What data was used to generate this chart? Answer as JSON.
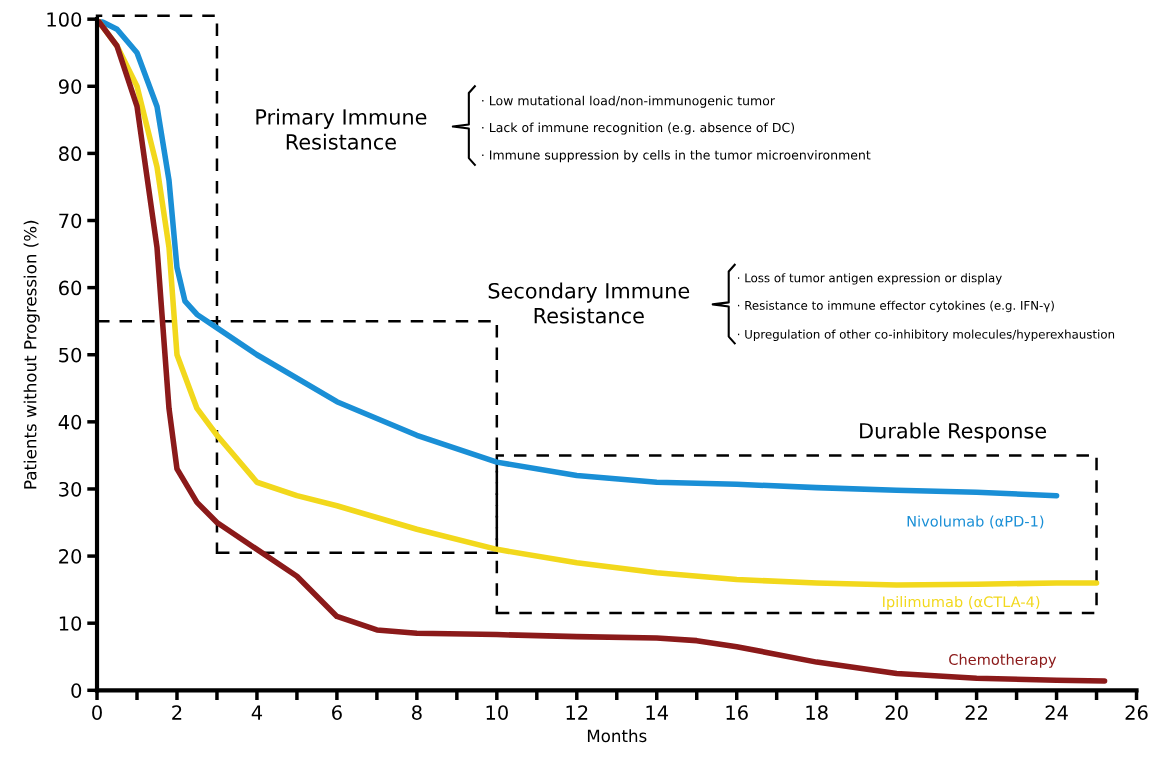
{
  "chart_data": {
    "type": "line",
    "xlabel": "Months",
    "ylabel": "Patients without Progression (%)",
    "xlim": [
      0,
      26
    ],
    "ylim": [
      0,
      100
    ],
    "xticks": [
      0,
      {
        "value": 1,
        "label": null
      },
      2,
      {
        "value": 3,
        "label": null
      },
      4,
      {
        "value": 5,
        "label": null
      },
      6,
      {
        "value": 7,
        "label": null
      },
      8,
      {
        "value": 9,
        "label": null
      },
      10,
      {
        "value": 11,
        "label": null
      },
      12,
      {
        "value": 13,
        "label": null
      },
      14,
      {
        "value": 15,
        "label": null
      },
      16,
      {
        "value": 17,
        "label": null
      },
      18,
      {
        "value": 19,
        "label": null
      },
      20,
      {
        "value": 21,
        "label": null
      },
      22,
      {
        "value": 23,
        "label": null
      },
      24,
      {
        "value": 25,
        "label": null
      },
      26
    ],
    "yticks": [
      0,
      10,
      20,
      30,
      40,
      50,
      60,
      70,
      80,
      90,
      100
    ],
    "grid": false,
    "legend": false,
    "marker": "none",
    "line_style": "solid",
    "series": [
      {
        "name": "Nivolumab (αPD-1)",
        "color": "#1a8fd6",
        "x": [
          0,
          0.5,
          1,
          1.5,
          1.8,
          2,
          2.2,
          2.5,
          3,
          4,
          6,
          8,
          10,
          12,
          14,
          16,
          18,
          20,
          22,
          24
        ],
        "values": [
          100,
          98.5,
          95,
          87,
          76,
          63,
          58,
          56,
          54,
          50,
          43,
          38,
          34,
          32,
          31,
          30.7,
          30.2,
          29.8,
          29.5,
          29
        ]
      },
      {
        "name": "Ipilimumab (αCTLA-4)",
        "color": "#f2d81c",
        "x": [
          0,
          0.5,
          1,
          1.5,
          1.8,
          2,
          2.5,
          3,
          4,
          5,
          6,
          8,
          10,
          12,
          14,
          16,
          18,
          20,
          22,
          24,
          25
        ],
        "values": [
          100,
          96,
          90,
          78,
          66,
          50,
          42,
          38,
          31,
          29,
          27.5,
          24,
          21,
          19,
          17.5,
          16.5,
          16,
          15.7,
          15.8,
          16,
          16
        ]
      },
      {
        "name": "Chemotherapy",
        "color": "#8b1a1a",
        "x": [
          0,
          0.5,
          1,
          1.5,
          1.8,
          2,
          2.5,
          3,
          4,
          5,
          6,
          7,
          8,
          10,
          12,
          14,
          15,
          16,
          18,
          20,
          22,
          24,
          25.2
        ],
        "values": [
          100,
          96,
          87,
          66,
          42,
          33,
          28,
          25,
          21,
          17,
          11,
          9,
          8.5,
          8.3,
          8,
          7.8,
          7.4,
          6.5,
          4.2,
          2.5,
          1.8,
          1.5,
          1.4
        ]
      }
    ],
    "annotations": [
      "Primary Immune\nResistance",
      "· Low mutational load/non-immunogenic tumor",
      "· Lack of immune recognition (e.g. absence of DC)",
      "· Immune suppression by cells in the tumor microenvironment",
      "Secondary Immune\nResistance",
      "· Loss of tumor antigen expression or display",
      "· Resistance to immune effector cytokines (e.g. IFN-γ)",
      "· Upregulation of other co-inhibitory molecules/hyperexhaustion",
      "Durable Response"
    ]
  }
}
